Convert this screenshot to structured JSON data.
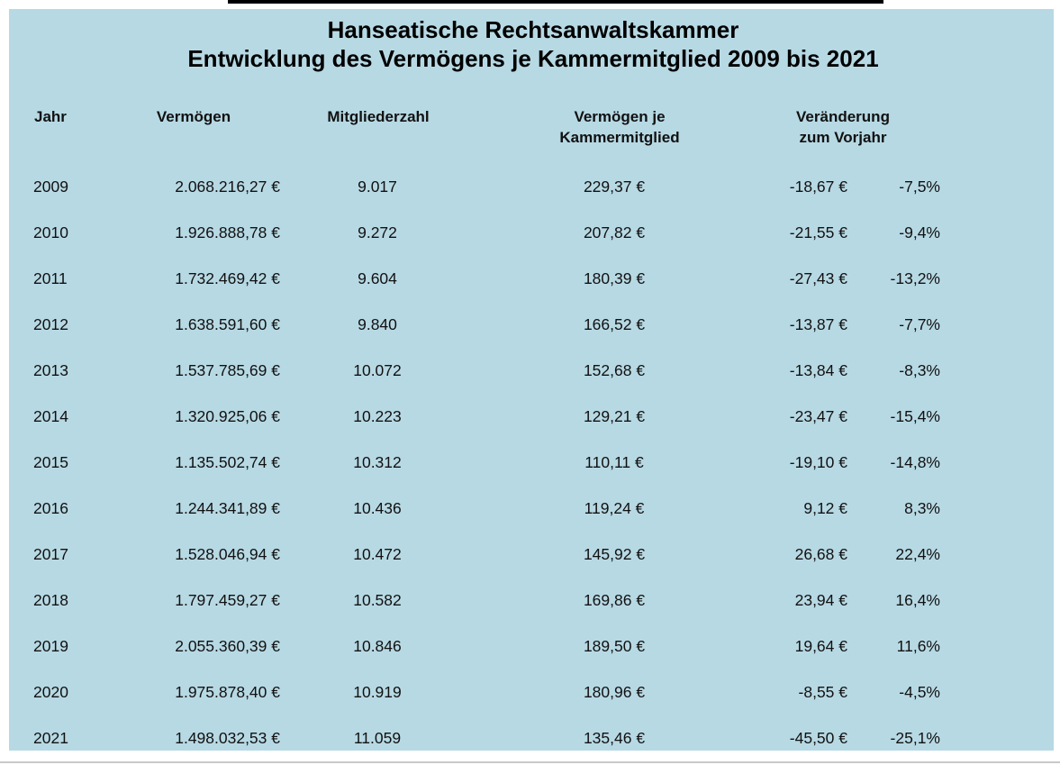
{
  "colors": {
    "panel_background": "#b7d9e4",
    "text": "#111111",
    "top_bar": "#000000"
  },
  "title": {
    "line1": "Hanseatische Rechtsanwaltskammer",
    "line2": "Entwicklung des Vermögens je Kammermitglied 2009 bis 2021"
  },
  "table": {
    "headers": {
      "jahr": "Jahr",
      "vermoegen": "Vermögen",
      "mitgliederzahl": "Mitgliederzahl",
      "vermoegen_je": [
        "Vermögen je",
        "Kammermitglied"
      ],
      "veraenderung": [
        "Veränderung",
        "zum Vorjahr"
      ]
    },
    "rows": [
      {
        "jahr": "2009",
        "vermoegen": "2.068.216,27 €",
        "mitgliederzahl": "9.017",
        "vermoegen_je": "229,37 €",
        "veraenderung_eur": "-18,67 €",
        "veraenderung_pct": "-7,5%"
      },
      {
        "jahr": "2010",
        "vermoegen": "1.926.888,78 €",
        "mitgliederzahl": "9.272",
        "vermoegen_je": "207,82 €",
        "veraenderung_eur": "-21,55 €",
        "veraenderung_pct": "-9,4%"
      },
      {
        "jahr": "2011",
        "vermoegen": "1.732.469,42 €",
        "mitgliederzahl": "9.604",
        "vermoegen_je": "180,39 €",
        "veraenderung_eur": "-27,43 €",
        "veraenderung_pct": "-13,2%"
      },
      {
        "jahr": "2012",
        "vermoegen": "1.638.591,60 €",
        "mitgliederzahl": "9.840",
        "vermoegen_je": "166,52 €",
        "veraenderung_eur": "-13,87 €",
        "veraenderung_pct": "-7,7%"
      },
      {
        "jahr": "2013",
        "vermoegen": "1.537.785,69 €",
        "mitgliederzahl": "10.072",
        "vermoegen_je": "152,68 €",
        "veraenderung_eur": "-13,84 €",
        "veraenderung_pct": "-8,3%"
      },
      {
        "jahr": "2014",
        "vermoegen": "1.320.925,06 €",
        "mitgliederzahl": "10.223",
        "vermoegen_je": "129,21 €",
        "veraenderung_eur": "-23,47 €",
        "veraenderung_pct": "-15,4%"
      },
      {
        "jahr": "2015",
        "vermoegen": "1.135.502,74 €",
        "mitgliederzahl": "10.312",
        "vermoegen_je": "110,11 €",
        "veraenderung_eur": "-19,10 €",
        "veraenderung_pct": "-14,8%"
      },
      {
        "jahr": "2016",
        "vermoegen": "1.244.341,89 €",
        "mitgliederzahl": "10.436",
        "vermoegen_je": "119,24 €",
        "veraenderung_eur": "9,12 €",
        "veraenderung_pct": "8,3%"
      },
      {
        "jahr": "2017",
        "vermoegen": "1.528.046,94 €",
        "mitgliederzahl": "10.472",
        "vermoegen_je": "145,92 €",
        "veraenderung_eur": "26,68 €",
        "veraenderung_pct": "22,4%"
      },
      {
        "jahr": "2018",
        "vermoegen": "1.797.459,27 €",
        "mitgliederzahl": "10.582",
        "vermoegen_je": "169,86 €",
        "veraenderung_eur": "23,94 €",
        "veraenderung_pct": "16,4%"
      },
      {
        "jahr": "2019",
        "vermoegen": "2.055.360,39 €",
        "mitgliederzahl": "10.846",
        "vermoegen_je": "189,50 €",
        "veraenderung_eur": "19,64 €",
        "veraenderung_pct": "11,6%"
      },
      {
        "jahr": "2020",
        "vermoegen": "1.975.878,40 €",
        "mitgliederzahl": "10.919",
        "vermoegen_je": "180,96 €",
        "veraenderung_eur": "-8,55 €",
        "veraenderung_pct": "-4,5%"
      },
      {
        "jahr": "2021",
        "vermoegen": "1.498.032,53 €",
        "mitgliederzahl": "11.059",
        "vermoegen_je": "135,46 €",
        "veraenderung_eur": "-45,50 €",
        "veraenderung_pct": "-25,1%"
      }
    ]
  },
  "chart_data": {
    "type": "table",
    "title": "Hanseatische Rechtsanwaltskammer — Entwicklung des Vermögens je Kammermitglied 2009 bis 2021",
    "columns": [
      "Jahr",
      "Vermögen",
      "Mitgliederzahl",
      "Vermögen je Kammermitglied",
      "Veränderung zum Vorjahr (€)",
      "Veränderung zum Vorjahr (%)"
    ],
    "rows": [
      [
        "2009",
        "2.068.216,27 €",
        "9.017",
        "229,37 €",
        "-18,67 €",
        "-7,5%"
      ],
      [
        "2010",
        "1.926.888,78 €",
        "9.272",
        "207,82 €",
        "-21,55 €",
        "-9,4%"
      ],
      [
        "2011",
        "1.732.469,42 €",
        "9.604",
        "180,39 €",
        "-27,43 €",
        "-13,2%"
      ],
      [
        "2012",
        "1.638.591,60 €",
        "9.840",
        "166,52 €",
        "-13,87 €",
        "-7,7%"
      ],
      [
        "2013",
        "1.537.785,69 €",
        "10.072",
        "152,68 €",
        "-13,84 €",
        "-8,3%"
      ],
      [
        "2014",
        "1.320.925,06 €",
        "10.223",
        "129,21 €",
        "-23,47 €",
        "-15,4%"
      ],
      [
        "2015",
        "1.135.502,74 €",
        "10.312",
        "110,11 €",
        "-19,10 €",
        "-14,8%"
      ],
      [
        "2016",
        "1.244.341,89 €",
        "10.436",
        "119,24 €",
        "9,12 €",
        "8,3%"
      ],
      [
        "2017",
        "1.528.046,94 €",
        "10.472",
        "145,92 €",
        "26,68 €",
        "22,4%"
      ],
      [
        "2018",
        "1.797.459,27 €",
        "10.582",
        "169,86 €",
        "23,94 €",
        "16,4%"
      ],
      [
        "2019",
        "2.055.360,39 €",
        "10.846",
        "189,50 €",
        "19,64 €",
        "11,6%"
      ],
      [
        "2020",
        "1.975.878,40 €",
        "10.919",
        "180,96 €",
        "-8,55 €",
        "-4,5%"
      ],
      [
        "2021",
        "1.498.032,53 €",
        "11.059",
        "135,46 €",
        "-45,50 €",
        "-25,1%"
      ]
    ]
  }
}
